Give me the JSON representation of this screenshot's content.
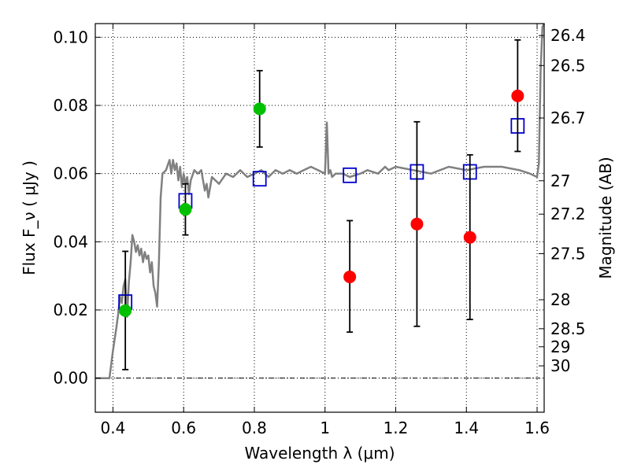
{
  "chart_data": {
    "type": "scatter",
    "xlabel": "Wavelength  λ (μm)",
    "ylabel": "Flux  F_ν  ( μJy )",
    "ylabel_right": "Magnitude (AB)",
    "xlim": [
      0.35,
      1.62
    ],
    "ylim": [
      -0.01,
      0.104
    ],
    "grid": true,
    "x_ticks": [
      0.4,
      0.6,
      0.8,
      1.0,
      1.2,
      1.4,
      1.6
    ],
    "x_tick_labels": [
      "0.4",
      "0.6",
      "0.8",
      "1",
      "1.2",
      "1.4",
      "1.6"
    ],
    "y_ticks": [
      0.0,
      0.02,
      0.04,
      0.06,
      0.08,
      0.1
    ],
    "y_tick_labels": [
      "0.00",
      "0.02",
      "0.04",
      "0.06",
      "0.08",
      "0.10"
    ],
    "right_ticks": [
      {
        "label": "26.4",
        "flux": 0.1005
      },
      {
        "label": "26.5",
        "flux": 0.0917
      },
      {
        "label": "26.7",
        "flux": 0.0763
      },
      {
        "label": "27",
        "flux": 0.0579
      },
      {
        "label": "27.2",
        "flux": 0.0481
      },
      {
        "label": "27.5",
        "flux": 0.0365
      },
      {
        "label": "28",
        "flux": 0.023
      },
      {
        "label": "28.5",
        "flux": 0.0145
      },
      {
        "label": "29",
        "flux": 0.0092
      },
      {
        "label": "30",
        "flux": 0.0036
      }
    ],
    "colors": {
      "model": "#808080",
      "green": "#00c000",
      "red": "#ff0000",
      "box": "#0000cc",
      "error": "#000000"
    },
    "series": [
      {
        "kind": "model-spectrum",
        "x": [
          0.35,
          0.39,
          0.4,
          0.41,
          0.415,
          0.42,
          0.425,
          0.43,
          0.435,
          0.44,
          0.445,
          0.45,
          0.455,
          0.46,
          0.465,
          0.47,
          0.475,
          0.48,
          0.485,
          0.49,
          0.495,
          0.5,
          0.505,
          0.51,
          0.515,
          0.52,
          0.525,
          0.53,
          0.535,
          0.54,
          0.55,
          0.56,
          0.565,
          0.57,
          0.575,
          0.58,
          0.585,
          0.59,
          0.595,
          0.6,
          0.605,
          0.61,
          0.615,
          0.62,
          0.63,
          0.64,
          0.65,
          0.66,
          0.665,
          0.67,
          0.68,
          0.7,
          0.72,
          0.74,
          0.76,
          0.78,
          0.8,
          0.82,
          0.84,
          0.86,
          0.88,
          0.9,
          0.92,
          0.94,
          0.96,
          0.98,
          1.0,
          1.005,
          1.01,
          1.015,
          1.02,
          1.03,
          1.05,
          1.07,
          1.1,
          1.12,
          1.15,
          1.17,
          1.18,
          1.2,
          1.25,
          1.3,
          1.35,
          1.4,
          1.45,
          1.5,
          1.55,
          1.58,
          1.6,
          1.605,
          1.61,
          1.615,
          1.62
        ],
        "y": [
          0.0,
          0.0,
          0.008,
          0.015,
          0.019,
          0.024,
          0.022,
          0.027,
          0.029,
          0.018,
          0.028,
          0.034,
          0.042,
          0.04,
          0.037,
          0.039,
          0.036,
          0.038,
          0.034,
          0.037,
          0.035,
          0.036,
          0.031,
          0.034,
          0.027,
          0.025,
          0.021,
          0.034,
          0.053,
          0.06,
          0.061,
          0.064,
          0.06,
          0.064,
          0.061,
          0.063,
          0.058,
          0.062,
          0.056,
          0.06,
          0.057,
          0.059,
          0.054,
          0.058,
          0.061,
          0.06,
          0.061,
          0.055,
          0.057,
          0.053,
          0.059,
          0.057,
          0.06,
          0.059,
          0.061,
          0.059,
          0.06,
          0.061,
          0.059,
          0.061,
          0.06,
          0.061,
          0.06,
          0.061,
          0.062,
          0.061,
          0.06,
          0.075,
          0.06,
          0.061,
          0.059,
          0.06,
          0.06,
          0.059,
          0.06,
          0.061,
          0.06,
          0.062,
          0.061,
          0.062,
          0.061,
          0.06,
          0.062,
          0.061,
          0.062,
          0.062,
          0.061,
          0.06,
          0.059,
          0.063,
          0.09,
          0.103,
          0.104
        ]
      },
      {
        "kind": "boxes",
        "points": [
          {
            "x": 0.435,
            "y": 0.0223
          },
          {
            "x": 0.605,
            "y": 0.052
          },
          {
            "x": 0.815,
            "y": 0.0585
          },
          {
            "x": 1.07,
            "y": 0.0595
          },
          {
            "x": 1.26,
            "y": 0.0605
          },
          {
            "x": 1.41,
            "y": 0.0605
          },
          {
            "x": 1.545,
            "y": 0.074
          }
        ]
      },
      {
        "kind": "green-points",
        "points": [
          {
            "x": 0.435,
            "y": 0.0198,
            "ylow": 0.0025,
            "yhigh": 0.0372
          },
          {
            "x": 0.605,
            "y": 0.0495,
            "ylow": 0.042,
            "yhigh": 0.057
          },
          {
            "x": 0.815,
            "y": 0.079,
            "ylow": 0.0678,
            "yhigh": 0.0902
          }
        ]
      },
      {
        "kind": "red-points",
        "points": [
          {
            "x": 1.07,
            "y": 0.0297,
            "ylow": 0.0135,
            "yhigh": 0.0462
          },
          {
            "x": 1.26,
            "y": 0.0452,
            "ylow": 0.0152,
            "yhigh": 0.0752
          },
          {
            "x": 1.41,
            "y": 0.0413,
            "ylow": 0.0172,
            "yhigh": 0.0655
          },
          {
            "x": 1.545,
            "y": 0.0828,
            "ylow": 0.0665,
            "yhigh": 0.0992
          }
        ]
      }
    ]
  }
}
